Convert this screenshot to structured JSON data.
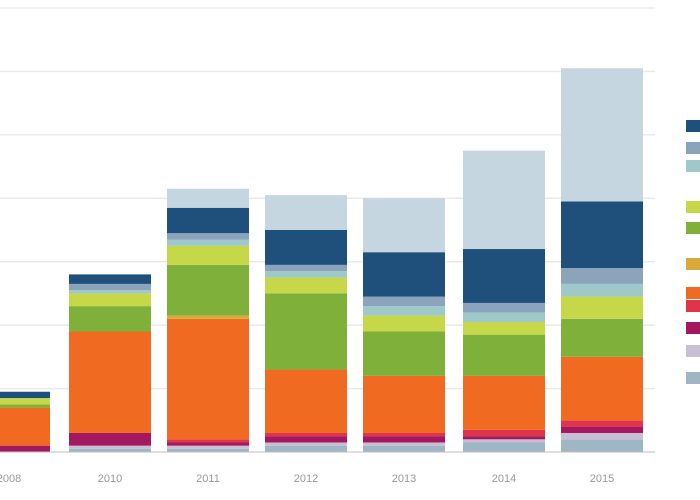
{
  "chart_data": {
    "type": "bar",
    "stacked": true,
    "grid": true,
    "legend_placement": "right",
    "ylim": [
      0,
      140
    ],
    "gridlines": [
      20,
      40,
      60,
      80,
      100,
      120,
      140
    ],
    "categories": [
      "2008",
      "2010",
      "2011",
      "2012",
      "2013",
      "2014",
      "2015"
    ],
    "series": [
      {
        "color": "#9fb6c4",
        "values": [
          0,
          1,
          1,
          2,
          2,
          3,
          4
        ]
      },
      {
        "color": "#c9bfd4",
        "values": [
          0,
          1,
          1,
          1,
          1,
          1,
          2
        ]
      },
      {
        "color": "#a3185e",
        "values": [
          2,
          4,
          1,
          2,
          2,
          1,
          2
        ]
      },
      {
        "color": "#e0344a",
        "values": [
          0,
          0,
          1,
          1,
          1,
          2,
          2
        ]
      },
      {
        "color": "#f06a22",
        "values": [
          12,
          32,
          38,
          20,
          18,
          17,
          20
        ]
      },
      {
        "color": "#d9a93a",
        "values": [
          0,
          0,
          1,
          0,
          0,
          0,
          0
        ]
      },
      {
        "color": "#7fb13a",
        "values": [
          1,
          8,
          16,
          24,
          14,
          13,
          12
        ]
      },
      {
        "color": "#c6d84a",
        "values": [
          2,
          4,
          6,
          5,
          5,
          4,
          7
        ]
      },
      {
        "color": "#9fc9c9",
        "values": [
          0,
          1,
          2,
          2,
          3,
          3,
          4
        ]
      },
      {
        "color": "#8ca4bb",
        "values": [
          0,
          2,
          2,
          2,
          3,
          3,
          5
        ]
      },
      {
        "color": "#1f4f7b",
        "values": [
          2,
          3,
          8,
          11,
          14,
          17,
          21
        ]
      },
      {
        "color": "#c6d6e0",
        "values": [
          0,
          0,
          6,
          11,
          17,
          31,
          42
        ]
      }
    ]
  }
}
